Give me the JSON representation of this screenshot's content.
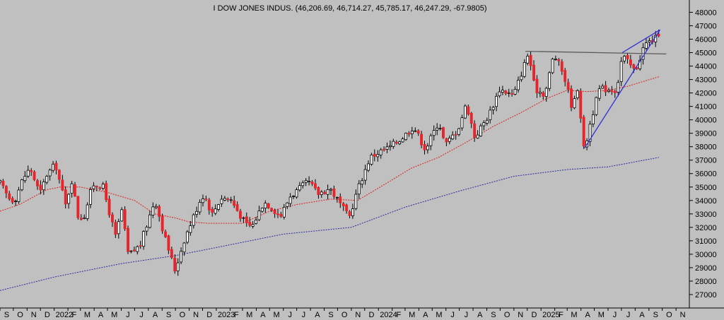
{
  "chart_data": {
    "type": "candlestick",
    "title": "I DOW JONES INDUS. (46,206.69, 46,714.27, 45,785.17, 46,247.29, -67.9805)",
    "xlabel": "",
    "ylabel": "",
    "ylim": [
      26000,
      48600
    ],
    "y_ticks": [
      27000,
      28000,
      29000,
      30000,
      31000,
      32000,
      33000,
      34000,
      35000,
      36000,
      37000,
      38000,
      39000,
      40000,
      41000,
      42000,
      43000,
      44000,
      45000,
      46000,
      47000,
      48000
    ],
    "x_start": "2021-09-01",
    "x_end": "2025-12-01",
    "x_ticks": [
      {
        "label": "S",
        "date": "2021-09-01"
      },
      {
        "label": "O",
        "date": "2021-10-01"
      },
      {
        "label": "N",
        "date": "2021-11-01"
      },
      {
        "label": "D",
        "date": "2021-12-01"
      },
      {
        "label": "2022",
        "date": "2022-01-01"
      },
      {
        "label": "F",
        "date": "2022-02-01"
      },
      {
        "label": "M",
        "date": "2022-03-01"
      },
      {
        "label": "A",
        "date": "2022-04-01"
      },
      {
        "label": "M",
        "date": "2022-05-01"
      },
      {
        "label": "J",
        "date": "2022-06-01"
      },
      {
        "label": "J",
        "date": "2022-07-01"
      },
      {
        "label": "A",
        "date": "2022-08-01"
      },
      {
        "label": "S",
        "date": "2022-09-01"
      },
      {
        "label": "O",
        "date": "2022-10-01"
      },
      {
        "label": "N",
        "date": "2022-11-01"
      },
      {
        "label": "D",
        "date": "2022-12-01"
      },
      {
        "label": "2023",
        "date": "2023-01-01"
      },
      {
        "label": "F",
        "date": "2023-02-01"
      },
      {
        "label": "M",
        "date": "2023-03-01"
      },
      {
        "label": "A",
        "date": "2023-04-01"
      },
      {
        "label": "M",
        "date": "2023-05-01"
      },
      {
        "label": "J",
        "date": "2023-06-01"
      },
      {
        "label": "J",
        "date": "2023-07-01"
      },
      {
        "label": "A",
        "date": "2023-08-01"
      },
      {
        "label": "S",
        "date": "2023-09-01"
      },
      {
        "label": "O",
        "date": "2023-10-01"
      },
      {
        "label": "N",
        "date": "2023-11-01"
      },
      {
        "label": "D",
        "date": "2023-12-01"
      },
      {
        "label": "2024",
        "date": "2024-01-01"
      },
      {
        "label": "F",
        "date": "2024-02-01"
      },
      {
        "label": "M",
        "date": "2024-03-01"
      },
      {
        "label": "A",
        "date": "2024-04-01"
      },
      {
        "label": "M",
        "date": "2024-05-01"
      },
      {
        "label": "J",
        "date": "2024-06-01"
      },
      {
        "label": "J",
        "date": "2024-07-01"
      },
      {
        "label": "A",
        "date": "2024-08-01"
      },
      {
        "label": "S",
        "date": "2024-09-01"
      },
      {
        "label": "O",
        "date": "2024-10-01"
      },
      {
        "label": "N",
        "date": "2024-11-01"
      },
      {
        "label": "D",
        "date": "2024-12-01"
      },
      {
        "label": "2025",
        "date": "2025-01-01"
      },
      {
        "label": "F",
        "date": "2025-02-01"
      },
      {
        "label": "M",
        "date": "2025-03-01"
      },
      {
        "label": "A",
        "date": "2025-04-01"
      },
      {
        "label": "M",
        "date": "2025-05-01"
      },
      {
        "label": "J",
        "date": "2025-06-01"
      },
      {
        "label": "J",
        "date": "2025-07-01"
      },
      {
        "label": "A",
        "date": "2025-08-01"
      },
      {
        "label": "S",
        "date": "2025-09-01"
      },
      {
        "label": "O",
        "date": "2025-10-01"
      },
      {
        "label": "N",
        "date": "2025-11-01"
      }
    ],
    "price_anchors": [
      {
        "date": "2021-09-01",
        "value": 35300
      },
      {
        "date": "2021-09-20",
        "value": 34200
      },
      {
        "date": "2021-10-04",
        "value": 34000
      },
      {
        "date": "2021-10-22",
        "value": 35600
      },
      {
        "date": "2021-11-08",
        "value": 36400
      },
      {
        "date": "2021-11-30",
        "value": 34500
      },
      {
        "date": "2021-12-15",
        "value": 35900
      },
      {
        "date": "2022-01-04",
        "value": 36700
      },
      {
        "date": "2022-01-27",
        "value": 33600
      },
      {
        "date": "2022-02-09",
        "value": 35600
      },
      {
        "date": "2022-02-24",
        "value": 32800
      },
      {
        "date": "2022-03-08",
        "value": 32700
      },
      {
        "date": "2022-03-29",
        "value": 35200
      },
      {
        "date": "2022-04-20",
        "value": 35100
      },
      {
        "date": "2022-05-19",
        "value": 31300
      },
      {
        "date": "2022-06-02",
        "value": 33300
      },
      {
        "date": "2022-06-17",
        "value": 29900
      },
      {
        "date": "2022-07-14",
        "value": 30700
      },
      {
        "date": "2022-08-16",
        "value": 34100
      },
      {
        "date": "2022-09-06",
        "value": 31400
      },
      {
        "date": "2022-09-30",
        "value": 28800
      },
      {
        "date": "2022-10-21",
        "value": 31100
      },
      {
        "date": "2022-11-30",
        "value": 34400
      },
      {
        "date": "2022-12-12",
        "value": 34000
      },
      {
        "date": "2022-12-21",
        "value": 32900
      },
      {
        "date": "2023-01-12",
        "value": 34200
      },
      {
        "date": "2023-02-02",
        "value": 34100
      },
      {
        "date": "2023-03-09",
        "value": 32200
      },
      {
        "date": "2023-03-23",
        "value": 32100
      },
      {
        "date": "2023-04-18",
        "value": 33900
      },
      {
        "date": "2023-05-02",
        "value": 33600
      },
      {
        "date": "2023-05-25",
        "value": 32800
      },
      {
        "date": "2023-06-16",
        "value": 34300
      },
      {
        "date": "2023-07-27",
        "value": 35400
      },
      {
        "date": "2023-08-18",
        "value": 34500
      },
      {
        "date": "2023-09-14",
        "value": 34900
      },
      {
        "date": "2023-10-27",
        "value": 32700
      },
      {
        "date": "2023-11-15",
        "value": 34800
      },
      {
        "date": "2023-12-13",
        "value": 37200
      },
      {
        "date": "2024-01-02",
        "value": 37600
      },
      {
        "date": "2024-01-23",
        "value": 37900
      },
      {
        "date": "2024-02-21",
        "value": 38600
      },
      {
        "date": "2024-03-20",
        "value": 39500
      },
      {
        "date": "2024-04-16",
        "value": 37800
      },
      {
        "date": "2024-05-16",
        "value": 39900
      },
      {
        "date": "2024-05-30",
        "value": 38100
      },
      {
        "date": "2024-06-28",
        "value": 39300
      },
      {
        "date": "2024-07-17",
        "value": 41200
      },
      {
        "date": "2024-08-05",
        "value": 38700
      },
      {
        "date": "2024-09-06",
        "value": 40400
      },
      {
        "date": "2024-09-30",
        "value": 42300
      },
      {
        "date": "2024-10-31",
        "value": 41800
      },
      {
        "date": "2024-12-04",
        "value": 45000
      },
      {
        "date": "2024-12-18",
        "value": 42300
      },
      {
        "date": "2025-01-10",
        "value": 41900
      },
      {
        "date": "2025-01-30",
        "value": 44900
      },
      {
        "date": "2025-02-21",
        "value": 43400
      },
      {
        "date": "2025-03-13",
        "value": 40800
      },
      {
        "date": "2025-03-25",
        "value": 42500
      },
      {
        "date": "2025-04-08",
        "value": 37600
      },
      {
        "date": "2025-04-24",
        "value": 40100
      },
      {
        "date": "2025-05-13",
        "value": 42300
      },
      {
        "date": "2025-05-30",
        "value": 42300
      },
      {
        "date": "2025-06-20",
        "value": 42200
      },
      {
        "date": "2025-07-03",
        "value": 44800
      },
      {
        "date": "2025-08-01",
        "value": 43600
      },
      {
        "date": "2025-08-22",
        "value": 45600
      },
      {
        "date": "2025-09-12",
        "value": 46000
      },
      {
        "date": "2025-09-23",
        "value": 46250
      }
    ],
    "moving_averages": [
      {
        "color": "#dd2020",
        "points": [
          {
            "date": "2021-09-01",
            "value": 33200
          },
          {
            "date": "2021-10-15",
            "value": 33700
          },
          {
            "date": "2021-12-15",
            "value": 34800
          },
          {
            "date": "2022-01-15",
            "value": 35000
          },
          {
            "date": "2022-03-01",
            "value": 35000
          },
          {
            "date": "2022-05-01",
            "value": 34600
          },
          {
            "date": "2022-07-01",
            "value": 34000
          },
          {
            "date": "2022-08-15",
            "value": 33000
          },
          {
            "date": "2022-10-01",
            "value": 32700
          },
          {
            "date": "2022-11-01",
            "value": 32400
          },
          {
            "date": "2022-12-15",
            "value": 32300
          },
          {
            "date": "2023-03-01",
            "value": 32300
          },
          {
            "date": "2023-05-01",
            "value": 33200
          },
          {
            "date": "2023-07-01",
            "value": 33700
          },
          {
            "date": "2023-09-15",
            "value": 34100
          },
          {
            "date": "2023-11-15",
            "value": 34000
          },
          {
            "date": "2024-01-15",
            "value": 35200
          },
          {
            "date": "2024-03-15",
            "value": 36400
          },
          {
            "date": "2024-05-15",
            "value": 37200
          },
          {
            "date": "2024-07-15",
            "value": 38300
          },
          {
            "date": "2024-09-15",
            "value": 39500
          },
          {
            "date": "2024-11-15",
            "value": 40500
          },
          {
            "date": "2025-01-15",
            "value": 41600
          },
          {
            "date": "2025-03-01",
            "value": 42200
          },
          {
            "date": "2025-04-15",
            "value": 42100
          },
          {
            "date": "2025-06-01",
            "value": 42200
          },
          {
            "date": "2025-07-15",
            "value": 42500
          },
          {
            "date": "2025-09-23",
            "value": 43200
          }
        ]
      },
      {
        "color": "#2a2aa0",
        "points": [
          {
            "date": "2021-09-01",
            "value": 27300
          },
          {
            "date": "2022-01-01",
            "value": 28300
          },
          {
            "date": "2022-06-01",
            "value": 29300
          },
          {
            "date": "2022-10-01",
            "value": 29900
          },
          {
            "date": "2023-01-01",
            "value": 30500
          },
          {
            "date": "2023-06-01",
            "value": 31500
          },
          {
            "date": "2023-11-01",
            "value": 32000
          },
          {
            "date": "2024-03-01",
            "value": 33500
          },
          {
            "date": "2024-07-01",
            "value": 34700
          },
          {
            "date": "2024-11-01",
            "value": 35800
          },
          {
            "date": "2025-03-01",
            "value": 36300
          },
          {
            "date": "2025-06-01",
            "value": 36500
          },
          {
            "date": "2025-09-23",
            "value": 37200
          }
        ]
      }
    ],
    "trendlines": [
      {
        "color": "#5a5a5a",
        "from": {
          "date": "2024-11-27",
          "value": 45100
        },
        "to": {
          "date": "2025-10-10",
          "value": 44900
        }
      },
      {
        "color": "#2f2fd8",
        "from": {
          "date": "2025-04-09",
          "value": 37900
        },
        "to": {
          "date": "2025-09-26",
          "value": 46700
        }
      },
      {
        "color": "#2f2fd8",
        "from": {
          "date": "2025-07-03",
          "value": 45000
        },
        "to": {
          "date": "2025-09-26",
          "value": 46700
        }
      }
    ],
    "candle_count": 212,
    "up_color": "#ffffff",
    "down_color": "#e8252a",
    "axis_side": "right",
    "grid": false,
    "legend": "none"
  }
}
